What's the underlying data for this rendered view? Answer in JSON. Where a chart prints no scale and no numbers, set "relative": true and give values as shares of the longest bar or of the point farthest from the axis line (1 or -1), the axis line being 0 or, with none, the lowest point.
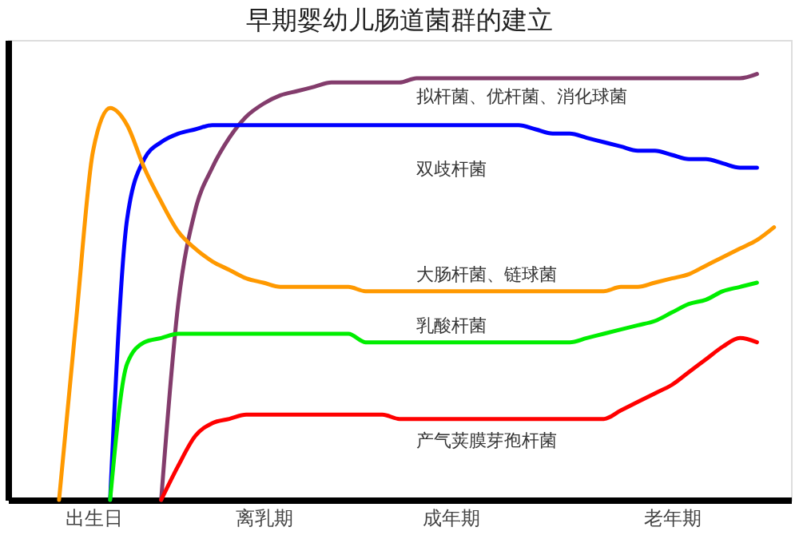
{
  "chart_data": {
    "type": "line",
    "title": "早期婴幼儿肠道菌群的建立",
    "relative": true,
    "categories": [
      null,
      null,
      null,
      null,
      null,
      "出生日",
      null,
      null,
      null,
      null,
      null,
      null,
      null,
      null,
      null,
      "离乳期",
      null,
      null,
      null,
      null,
      null,
      null,
      null,
      null,
      null,
      null,
      "成年期",
      null,
      null,
      null,
      null,
      null,
      null,
      null,
      null,
      null,
      null,
      null,
      null,
      "老年期",
      null,
      null,
      null,
      null,
      null,
      null,
      null
    ],
    "grid": false,
    "marker": "none",
    "line_style": "solid",
    "tick_labels": "x",
    "series": [
      {
        "name": "拟杆菌、优杆菌、消化球菌",
        "color": "#833c6c",
        "values": [
          null,
          null,
          null,
          null,
          null,
          null,
          null,
          null,
          null,
          0,
          0.46,
          0.68,
          0.78,
          0.85,
          0.9,
          0.93,
          0.95,
          0.96,
          0.97,
          0.98,
          0.98,
          0.98,
          0.98,
          0.98,
          0.99,
          0.99,
          0.99,
          0.99,
          0.99,
          0.99,
          0.99,
          0.99,
          0.99,
          0.99,
          0.99,
          0.99,
          0.99,
          0.99,
          0.99,
          0.99,
          0.99,
          0.99,
          0.99,
          0.99,
          1,
          null,
          null
        ]
      },
      {
        "name": "双歧杆菌",
        "color": "#0000ff",
        "values": [
          null,
          null,
          null,
          null,
          null,
          null,
          0,
          0.66,
          0.8,
          0.84,
          0.86,
          0.87,
          0.88,
          0.88,
          0.88,
          0.88,
          0.88,
          0.88,
          0.88,
          0.88,
          0.88,
          0.88,
          0.88,
          0.88,
          0.88,
          0.88,
          0.88,
          0.88,
          0.88,
          0.88,
          0.88,
          0.87,
          0.86,
          0.86,
          0.85,
          0.84,
          0.83,
          0.82,
          0.82,
          0.81,
          0.8,
          0.8,
          0.79,
          0.78,
          0.78,
          null,
          null
        ]
      },
      {
        "name": "大肠杆菌、链球菌",
        "color": "#ff9900",
        "values": [
          null,
          null,
          null,
          0,
          0.42,
          0.82,
          0.92,
          0.88,
          0.78,
          0.7,
          0.63,
          0.59,
          0.56,
          0.54,
          0.52,
          0.51,
          0.5,
          0.5,
          0.5,
          0.5,
          0.5,
          0.49,
          0.49,
          0.49,
          0.49,
          0.49,
          0.49,
          0.49,
          0.49,
          0.49,
          0.49,
          0.49,
          0.49,
          0.49,
          0.49,
          0.49,
          0.5,
          0.5,
          0.51,
          0.52,
          0.53,
          0.55,
          0.57,
          0.59,
          0.61,
          0.64,
          null
        ]
      },
      {
        "name": "乳酸杆菌",
        "color": "#00ee00",
        "values": [
          null,
          null,
          null,
          null,
          null,
          null,
          0,
          0.32,
          0.37,
          0.38,
          0.39,
          0.39,
          0.39,
          0.39,
          0.39,
          0.39,
          0.39,
          0.39,
          0.39,
          0.39,
          0.39,
          0.37,
          0.37,
          0.37,
          0.37,
          0.37,
          0.37,
          0.37,
          0.37,
          0.37,
          0.37,
          0.37,
          0.37,
          0.37,
          0.38,
          0.39,
          0.4,
          0.41,
          0.42,
          0.44,
          0.46,
          0.47,
          0.49,
          0.5,
          0.51,
          null,
          null
        ]
      },
      {
        "name": "产气荚膜芽孢杆菌",
        "color": "#ff0000",
        "values": [
          null,
          null,
          null,
          null,
          null,
          null,
          null,
          null,
          null,
          0,
          0.08,
          0.15,
          0.18,
          0.19,
          0.2,
          0.2,
          0.2,
          0.2,
          0.2,
          0.2,
          0.2,
          0.2,
          0.2,
          0.19,
          0.19,
          0.19,
          0.19,
          0.19,
          0.19,
          0.19,
          0.19,
          0.19,
          0.19,
          0.19,
          0.19,
          0.19,
          0.21,
          0.23,
          0.25,
          0.27,
          0.3,
          0.33,
          0.36,
          0.38,
          0.37,
          null,
          null
        ]
      }
    ]
  }
}
